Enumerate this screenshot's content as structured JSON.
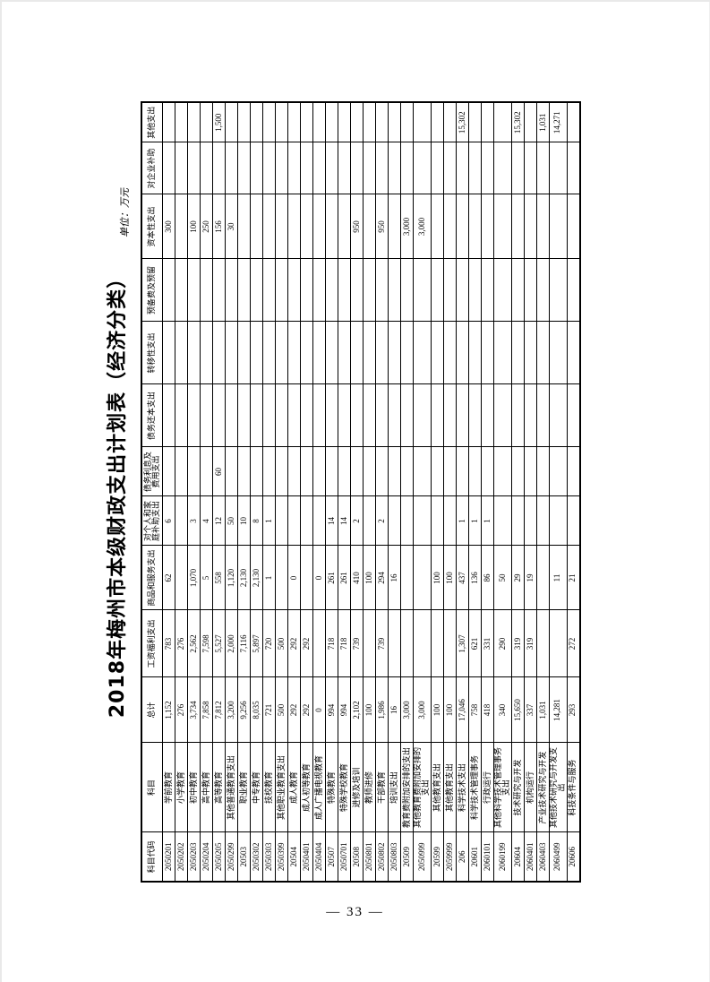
{
  "page": {
    "title": "2018年梅州市本级财政支出计划表（经济分类）",
    "unit_label": "单位：万元",
    "page_number": "— 33 —"
  },
  "table": {
    "columns": [
      "科目代码",
      "科目",
      "总计",
      "工资福利支出",
      "商品和服务支出",
      "对个人和家庭补助支出",
      "债务利息及费用支出",
      "债务还本支出",
      "转移性支出",
      "预备费及预留",
      "资本性支出",
      "对企业补助",
      "其他支出"
    ],
    "cell_names": [
      "subject-code",
      "subject-name",
      "total",
      "wage-welfare",
      "goods-services",
      "individual-family-subsidy",
      "debt-interest-fees",
      "debt-principal",
      "transfer-expense",
      "reserve-funds",
      "capital-expense",
      "enterprise-subsidy",
      "other-expense"
    ],
    "rows": [
      [
        "2050201",
        "学前教育",
        "1,152",
        "783",
        "62",
        "6",
        "",
        "",
        "",
        "",
        "300",
        "",
        ""
      ],
      [
        "2050202",
        "小学教育",
        "276",
        "276",
        "",
        "",
        "",
        "",
        "",
        "",
        "",
        "",
        ""
      ],
      [
        "2050203",
        "初中教育",
        "3,734",
        "2,562",
        "1,070",
        "3",
        "",
        "",
        "",
        "",
        "100",
        "",
        ""
      ],
      [
        "2050204",
        "高中教育",
        "7,858",
        "7,598",
        "5",
        "4",
        "",
        "",
        "",
        "",
        "250",
        "",
        ""
      ],
      [
        "2050205",
        "高等教育",
        "7,812",
        "5,527",
        "558",
        "12",
        "60",
        "",
        "",
        "",
        "156",
        "",
        "1,500"
      ],
      [
        "2050299",
        "其他普通教育支出",
        "3,200",
        "2,000",
        "1,120",
        "50",
        "",
        "",
        "",
        "",
        "30",
        "",
        ""
      ],
      [
        "20503",
        "职业教育",
        "9,256",
        "7,116",
        "2,130",
        "10",
        "",
        "",
        "",
        "",
        "",
        "",
        ""
      ],
      [
        "2050302",
        "中专教育",
        "8,035",
        "5,897",
        "2,130",
        "8",
        "",
        "",
        "",
        "",
        "",
        "",
        ""
      ],
      [
        "2050303",
        "技校教育",
        "721",
        "720",
        "1",
        "1",
        "",
        "",
        "",
        "",
        "",
        "",
        ""
      ],
      [
        "2050399",
        "其他职业教育支出",
        "500",
        "500",
        "",
        "",
        "",
        "",
        "",
        "",
        "",
        "",
        ""
      ],
      [
        "20504",
        "成人教育",
        "292",
        "292",
        "0",
        "",
        "",
        "",
        "",
        "",
        "",
        "",
        ""
      ],
      [
        "2050401",
        "成人初等教育",
        "292",
        "292",
        "",
        "",
        "",
        "",
        "",
        "",
        "",
        "",
        ""
      ],
      [
        "2050404",
        "成人广播电视教育",
        "0",
        "",
        "0",
        "",
        "",
        "",
        "",
        "",
        "",
        "",
        ""
      ],
      [
        "20507",
        "特殊教育",
        "994",
        "718",
        "261",
        "14",
        "",
        "",
        "",
        "",
        "",
        "",
        ""
      ],
      [
        "2050701",
        "特殊学校教育",
        "994",
        "718",
        "261",
        "14",
        "",
        "",
        "",
        "",
        "",
        "",
        ""
      ],
      [
        "20508",
        "进修及培训",
        "2,102",
        "739",
        "410",
        "2",
        "",
        "",
        "",
        "",
        "950",
        "",
        ""
      ],
      [
        "2050801",
        "教师进修",
        "100",
        "",
        "100",
        "",
        "",
        "",
        "",
        "",
        "",
        "",
        ""
      ],
      [
        "2050802",
        "干部教育",
        "1,986",
        "739",
        "294",
        "2",
        "",
        "",
        "",
        "",
        "950",
        "",
        ""
      ],
      [
        "2050803",
        "培训支出",
        "16",
        "",
        "16",
        "",
        "",
        "",
        "",
        "",
        "",
        "",
        ""
      ],
      [
        "20509",
        "教育费附加安排的支出",
        "3,000",
        "",
        "",
        "",
        "",
        "",
        "",
        "",
        "3,000",
        "",
        ""
      ],
      [
        "2050999",
        "其他教育费附加安排的支出",
        "3,000",
        "",
        "",
        "",
        "",
        "",
        "",
        "",
        "3,000",
        "",
        ""
      ],
      [
        "20599",
        "其他教育支出",
        "100",
        "",
        "100",
        "",
        "",
        "",
        "",
        "",
        "",
        "",
        ""
      ],
      [
        "2059999",
        "其他教育支出",
        "100",
        "",
        "100",
        "",
        "",
        "",
        "",
        "",
        "",
        "",
        ""
      ],
      [
        "206",
        "科学技术支出",
        "17,046",
        "1,307",
        "437",
        "1",
        "",
        "",
        "",
        "",
        "",
        "",
        "15,302"
      ],
      [
        "20601",
        "科学技术管理事务",
        "758",
        "621",
        "136",
        "1",
        "",
        "",
        "",
        "",
        "",
        "",
        ""
      ],
      [
        "2060101",
        "行政运行",
        "418",
        "331",
        "86",
        "1",
        "",
        "",
        "",
        "",
        "",
        "",
        ""
      ],
      [
        "2060199",
        "其他科学技术管理事务支出",
        "340",
        "290",
        "50",
        "",
        "",
        "",
        "",
        "",
        "",
        "",
        ""
      ],
      [
        "20604",
        "技术研究与开发",
        "15,650",
        "319",
        "29",
        "",
        "",
        "",
        "",
        "",
        "",
        "",
        "15,302"
      ],
      [
        "2060401",
        "机构运行",
        "337",
        "319",
        "19",
        "",
        "",
        "",
        "",
        "",
        "",
        "",
        ""
      ],
      [
        "2060403",
        "产业技术研究与开发",
        "1,031",
        "",
        "",
        "",
        "",
        "",
        "",
        "",
        "",
        "",
        "1,031"
      ],
      [
        "2060499",
        "其他技术研究与开发支出",
        "14,281",
        "",
        "11",
        "",
        "",
        "",
        "",
        "",
        "",
        "",
        "14,271"
      ],
      [
        "20606",
        "科技条件与服务",
        "293",
        "272",
        "21",
        "",
        "",
        "",
        "",
        "",
        "",
        "",
        ""
      ]
    ]
  }
}
